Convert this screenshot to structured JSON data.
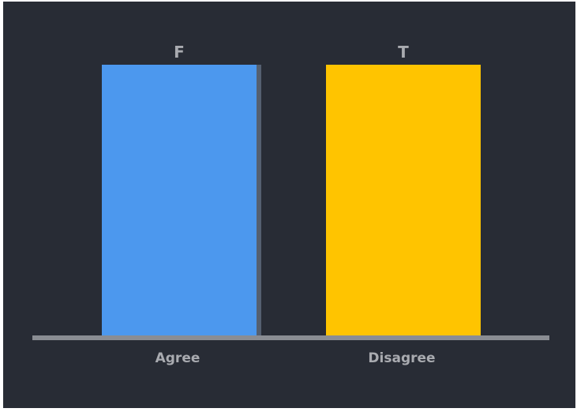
{
  "chart_data": {
    "type": "bar",
    "categories": [
      "Agree",
      "Disagree"
    ],
    "values": [
      1,
      1
    ],
    "data_labels": [
      "F",
      "T"
    ],
    "title": "",
    "xlabel": "",
    "ylabel": "",
    "ylim": [
      0,
      1
    ],
    "grid": false,
    "legend": "none",
    "colors": [
      "#4c98ee",
      "#ffc400"
    ]
  },
  "theme": {
    "background": "#282c35",
    "axis_color": "#8a8d93",
    "bar_shadow": "#556070",
    "label_color": "#a9abb0"
  }
}
